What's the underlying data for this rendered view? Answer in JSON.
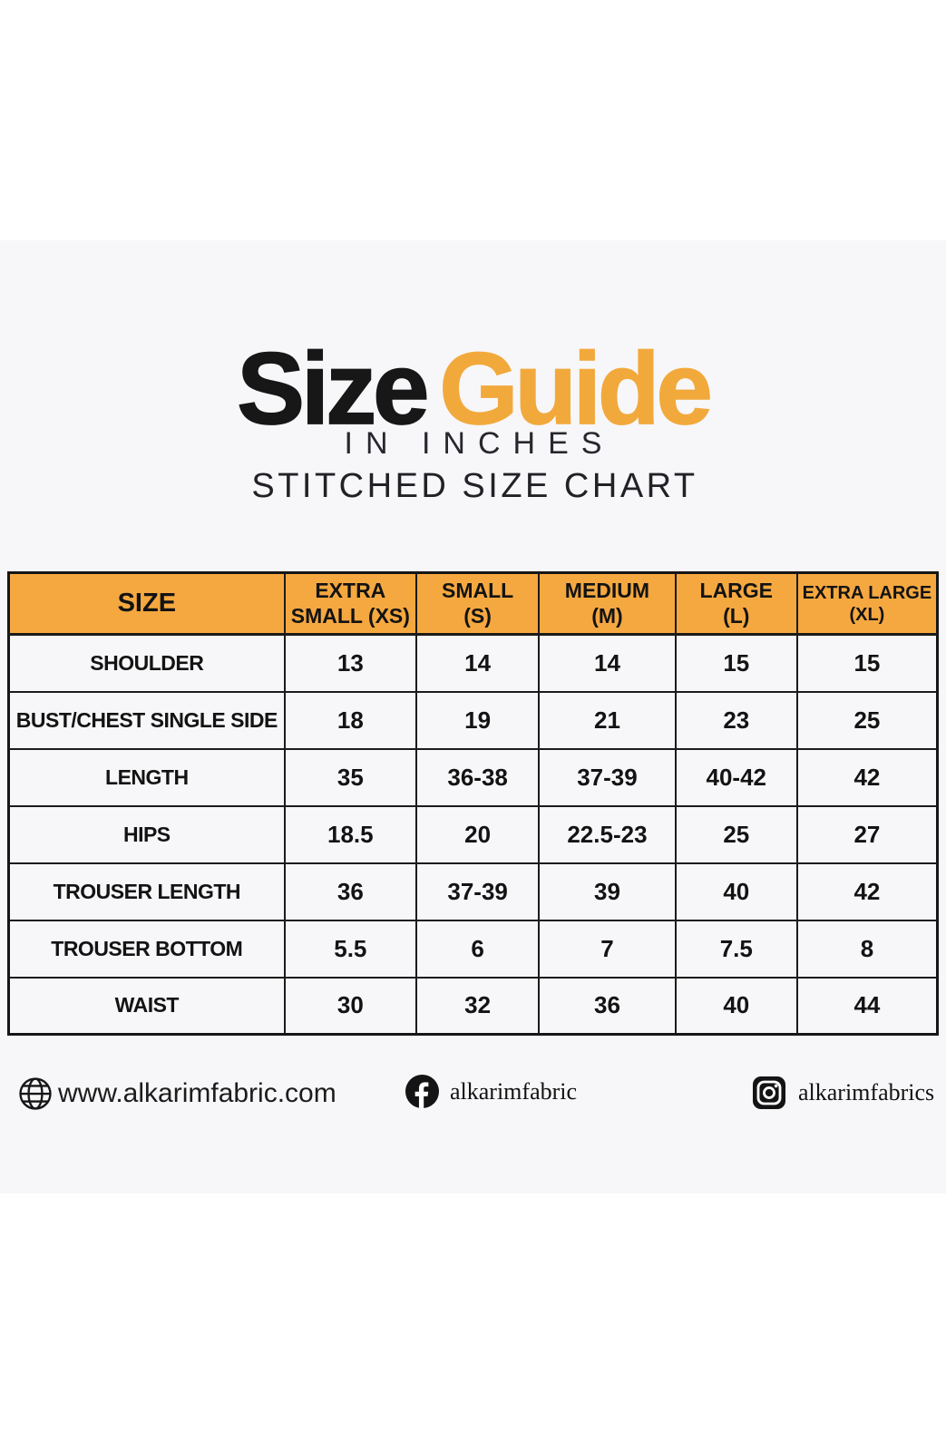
{
  "colors": {
    "accent": "#f2a93c",
    "header_bg": "#f5a840",
    "band_bg": "#f7f7f9",
    "border": "#1b1b1b"
  },
  "title": {
    "word_black": "Size",
    "word_orange": "Guide",
    "subtitle1": "IN INCHES",
    "subtitle2": "STITCHED SIZE CHART"
  },
  "chart_data": {
    "type": "table",
    "title": "Size Guide - Stitched Size Chart (in inches)",
    "columns": [
      "SIZE",
      "EXTRA SMALL (XS)",
      "SMALL (S)",
      "MEDIUM (M)",
      "LARGE (L)",
      "EXTRA LARGE (XL)"
    ],
    "rows": [
      [
        "SHOULDER",
        "13",
        "14",
        "14",
        "15",
        "15"
      ],
      [
        "BUST/CHEST SINGLE SIDE",
        "18",
        "19",
        "21",
        "23",
        "25"
      ],
      [
        "LENGTH",
        "35",
        "36-38",
        "37-39",
        "40-42",
        "42"
      ],
      [
        "HIPS",
        "18.5",
        "20",
        "22.5-23",
        "25",
        "27"
      ],
      [
        "TROUSER LENGTH",
        "36",
        "37-39",
        "39",
        "40",
        "42"
      ],
      [
        "TROUSER BOTTOM",
        "5.5",
        "6",
        "7",
        "7.5",
        "8"
      ],
      [
        "WAIST",
        "30",
        "32",
        "36",
        "40",
        "44"
      ]
    ]
  },
  "table": {
    "columns": [
      {
        "lines": [
          "SIZE"
        ]
      },
      {
        "lines": [
          "EXTRA",
          "SMALL (XS)"
        ]
      },
      {
        "lines": [
          "SMALL",
          "(S)"
        ]
      },
      {
        "lines": [
          "MEDIUM",
          "(M)"
        ]
      },
      {
        "lines": [
          "LARGE",
          "(L)"
        ]
      },
      {
        "lines": [
          "EXTRA LARGE",
          "(XL)"
        ]
      }
    ],
    "rows": [
      {
        "label": "SHOULDER",
        "values": [
          "13",
          "14",
          "14",
          "15",
          "15"
        ]
      },
      {
        "label": "BUST/CHEST SINGLE SIDE",
        "values": [
          "18",
          "19",
          "21",
          "23",
          "25"
        ]
      },
      {
        "label": "LENGTH",
        "values": [
          "35",
          "36-38",
          "37-39",
          "40-42",
          "42"
        ]
      },
      {
        "label": "HIPS",
        "values": [
          "18.5",
          "20",
          "22.5-23",
          "25",
          "27"
        ]
      },
      {
        "label": "TROUSER LENGTH",
        "values": [
          "36",
          "37-39",
          "39",
          "40",
          "42"
        ]
      },
      {
        "label": "TROUSER BOTTOM",
        "values": [
          "5.5",
          "6",
          "7",
          "7.5",
          "8"
        ]
      },
      {
        "label": "WAIST",
        "values": [
          "30",
          "32",
          "36",
          "40",
          "44"
        ]
      }
    ]
  },
  "footer": {
    "website": "www.alkarimfabric.com",
    "facebook": "alkarimfabric",
    "instagram": "alkarimfabrics"
  }
}
